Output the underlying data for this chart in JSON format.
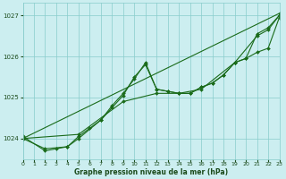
{
  "title": "Graphe pression niveau de la mer (hPa)",
  "bg_color": "#cceef0",
  "grid_color": "#88cccc",
  "line_color": "#1a6b1a",
  "marker_color": "#1a6b1a",
  "text_color": "#1a4a1a",
  "xlim": [
    0,
    23
  ],
  "ylim": [
    1023.5,
    1027.3
  ],
  "yticks": [
    1024,
    1025,
    1026,
    1027
  ],
  "xticks": [
    0,
    1,
    2,
    3,
    4,
    5,
    6,
    7,
    8,
    9,
    10,
    11,
    12,
    13,
    14,
    15,
    16,
    17,
    18,
    19,
    20,
    21,
    22,
    23
  ],
  "series": [
    {
      "x": [
        0,
        23
      ],
      "y": [
        1024.0,
        1027.05
      ]
    },
    {
      "x": [
        0,
        5,
        9,
        12,
        14,
        16,
        19,
        21,
        22,
        23
      ],
      "y": [
        1024.0,
        1024.1,
        1024.9,
        1025.1,
        1025.1,
        1025.2,
        1025.85,
        1026.5,
        1026.65,
        1027.0
      ]
    },
    {
      "x": [
        0,
        2,
        4,
        5,
        7,
        8,
        9,
        10,
        11,
        12,
        13,
        14,
        15,
        16,
        17,
        18,
        19,
        20,
        21,
        22,
        23
      ],
      "y": [
        1024.0,
        1023.75,
        1023.8,
        1024.0,
        1024.45,
        1024.75,
        1025.05,
        1025.5,
        1025.8,
        1025.2,
        1025.15,
        1025.1,
        1025.1,
        1025.25,
        1025.35,
        1025.55,
        1025.85,
        1025.95,
        1026.1,
        1026.2,
        1026.95
      ]
    },
    {
      "x": [
        0,
        2,
        3,
        4,
        5,
        6,
        7,
        8,
        9,
        10,
        11,
        12,
        13,
        14,
        15,
        16,
        17,
        18,
        19,
        20,
        21,
        22,
        23
      ],
      "y": [
        1024.05,
        1023.7,
        1023.75,
        1023.8,
        1024.05,
        1024.25,
        1024.45,
        1024.8,
        1025.1,
        1025.45,
        1025.85,
        1025.2,
        1025.15,
        1025.1,
        1025.1,
        1025.25,
        1025.35,
        1025.55,
        1025.85,
        1025.95,
        1026.55,
        1026.7,
        1027.0
      ]
    }
  ]
}
